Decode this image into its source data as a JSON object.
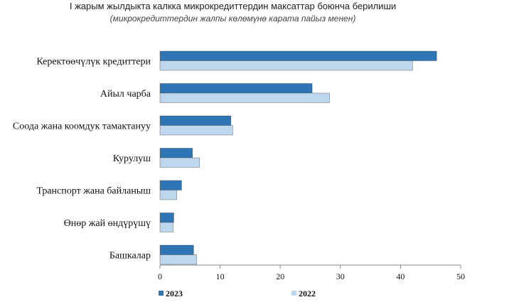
{
  "chart_data": {
    "type": "bar",
    "orientation": "horizontal",
    "title": "I жарым жылдыкта калкка микрокредиттердин максаттар боюнча берилиши",
    "subtitle": "(микрокредиттердин жалпы көлөмүнө карата пайыз менен)",
    "categories": [
      "Керектөөчүлүк кредиттери",
      "Айыл чарба",
      "Соода жана коомдук тамактануу",
      "Курулуш",
      "Транспорт жана байланыш",
      "Өнөр жай өндүрүшү",
      "Башкалар"
    ],
    "series": [
      {
        "name": "2023",
        "color": "#2e75b6",
        "values": [
          46.0,
          25.3,
          11.8,
          5.4,
          3.6,
          2.3,
          5.6
        ]
      },
      {
        "name": "2022",
        "color": "#bdd7ee",
        "values": [
          42.0,
          28.2,
          12.1,
          6.6,
          2.8,
          2.2,
          6.1
        ]
      }
    ],
    "xlim": [
      0,
      50
    ],
    "xticks": [
      "0",
      "10",
      "20",
      "30",
      "40",
      "50"
    ],
    "grid": false,
    "legend_position": "bottom"
  }
}
